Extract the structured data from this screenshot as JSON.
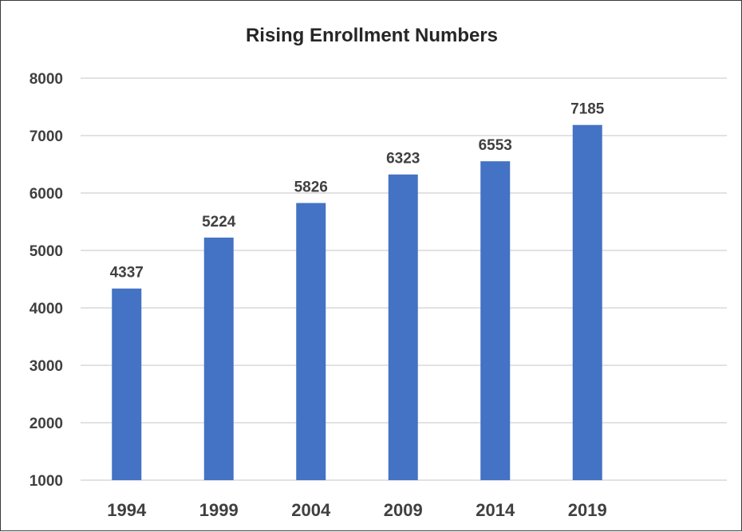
{
  "chart_data": {
    "type": "bar",
    "title": "Rising Enrollment Numbers",
    "xlabel": "",
    "ylabel": "",
    "categories": [
      "1994",
      "1999",
      "2004",
      "2009",
      "2014",
      "2019"
    ],
    "values": [
      4337,
      5224,
      5826,
      6323,
      6553,
      7185
    ],
    "data_labels": [
      "4337",
      "5224",
      "5826",
      "6323",
      "6553",
      "7185"
    ],
    "ylim": [
      1000,
      8000
    ],
    "yticks": [
      "1000",
      "2000",
      "3000",
      "4000",
      "5000",
      "6000",
      "7000",
      "8000"
    ],
    "grid": true,
    "legend": "none",
    "colors": {
      "bar": "#4472C4",
      "grid": "#D9D9D9",
      "text": "#404040"
    }
  }
}
